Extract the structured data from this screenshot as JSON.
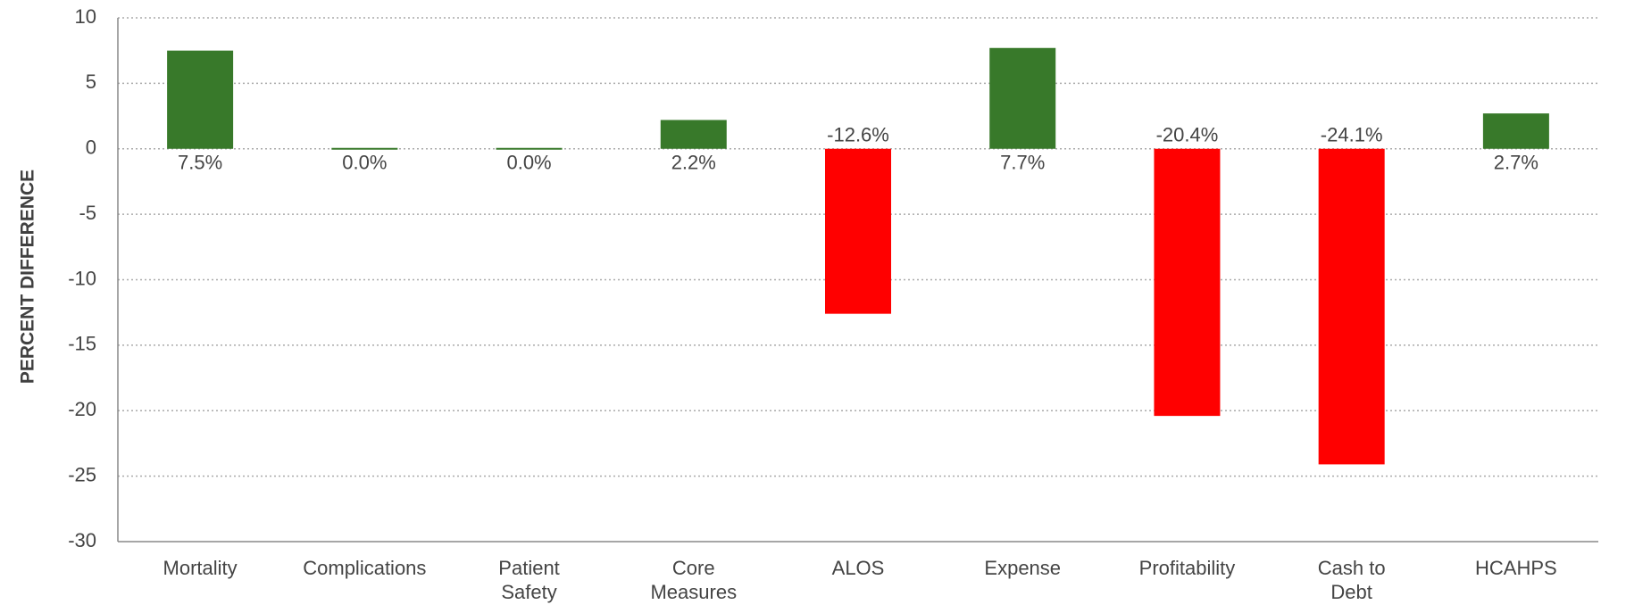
{
  "chart_data": {
    "type": "bar",
    "y_label": "PERCENT DIFFERENCE",
    "categories": [
      "Mortality",
      "Complications",
      "Patient Safety",
      "Core Measures",
      "ALOS",
      "Expense",
      "Profitability",
      "Cash to Debt",
      "HCAHPS"
    ],
    "values": [
      7.5,
      0.0,
      0.0,
      2.2,
      -12.6,
      7.7,
      -20.4,
      -24.1,
      2.7
    ],
    "value_labels": [
      "7.5%",
      "0.0%",
      "0.0%",
      "2.2%",
      "-12.6%",
      "7.7%",
      "-20.4%",
      "-24.1%",
      "2.7%"
    ],
    "colors": [
      "#38792a",
      "#38792a",
      "#38792a",
      "#38792a",
      "#ff0000",
      "#38792a",
      "#ff0000",
      "#ff0000",
      "#38792a"
    ],
    "ylim": [
      -30,
      10
    ],
    "yticks": [
      -30,
      -25,
      -20,
      -15,
      -10,
      -5,
      0,
      5,
      10
    ],
    "grid": true
  }
}
